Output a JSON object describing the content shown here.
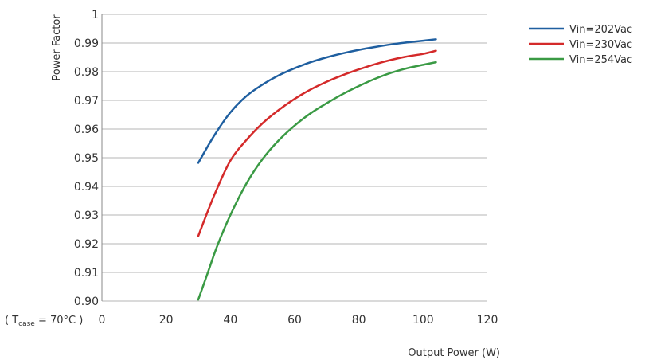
{
  "chart_data": {
    "type": "line",
    "title": "",
    "xlabel": "Output Power (W)",
    "ylabel": "Power Factor",
    "condition": {
      "prefix": "( T",
      "subscript": "case",
      "suffix": " = 70°C )"
    },
    "xlim": [
      0,
      120
    ],
    "ylim": [
      0.9,
      1.0
    ],
    "x_ticks": [
      0,
      20,
      40,
      60,
      80,
      100,
      120
    ],
    "x_tick_labels": [
      "0",
      "20",
      "40",
      "60",
      "80",
      "100",
      "120"
    ],
    "y_ticks": [
      0.9,
      0.91,
      0.92,
      0.93,
      0.94,
      0.95,
      0.96,
      0.97,
      0.98,
      0.99,
      1.0
    ],
    "y_tick_labels": [
      "0.90",
      "0.91",
      "0.92",
      "0.93",
      "0.94",
      "0.95",
      "0.96",
      "0.97",
      "0.98",
      "0.99",
      "1"
    ],
    "grid": "horizontal",
    "legend_position": "top-right outside",
    "series": [
      {
        "name": "Vin=202Vac",
        "color": "#1f5fa0",
        "x": [
          30,
          35,
          40,
          45,
          50,
          55,
          60,
          65,
          70,
          75,
          80,
          85,
          90,
          95,
          100,
          104
        ],
        "y": [
          0.9482,
          0.9578,
          0.9658,
          0.9715,
          0.9755,
          0.9787,
          0.9812,
          0.9833,
          0.985,
          0.9864,
          0.9876,
          0.9886,
          0.9895,
          0.9902,
          0.9908,
          0.9913
        ]
      },
      {
        "name": "Vin=230Vac",
        "color": "#d42a2a",
        "x": [
          30,
          35,
          40,
          45,
          50,
          55,
          60,
          65,
          70,
          75,
          80,
          85,
          90,
          95,
          100,
          104
        ],
        "y": [
          0.9227,
          0.937,
          0.949,
          0.9562,
          0.962,
          0.9666,
          0.9705,
          0.9738,
          0.9765,
          0.9788,
          0.9808,
          0.9826,
          0.9841,
          0.9853,
          0.9862,
          0.9873
        ]
      },
      {
        "name": "Vin=254Vac",
        "color": "#3a9a44",
        "x": [
          30,
          33,
          36,
          40,
          45,
          50,
          55,
          60,
          65,
          70,
          75,
          80,
          85,
          90,
          95,
          100,
          104
        ],
        "y": [
          0.9005,
          0.91,
          0.9195,
          0.93,
          0.941,
          0.9495,
          0.956,
          0.9612,
          0.9655,
          0.969,
          0.9722,
          0.975,
          0.9775,
          0.9796,
          0.9812,
          0.9824,
          0.9833
        ]
      }
    ]
  }
}
